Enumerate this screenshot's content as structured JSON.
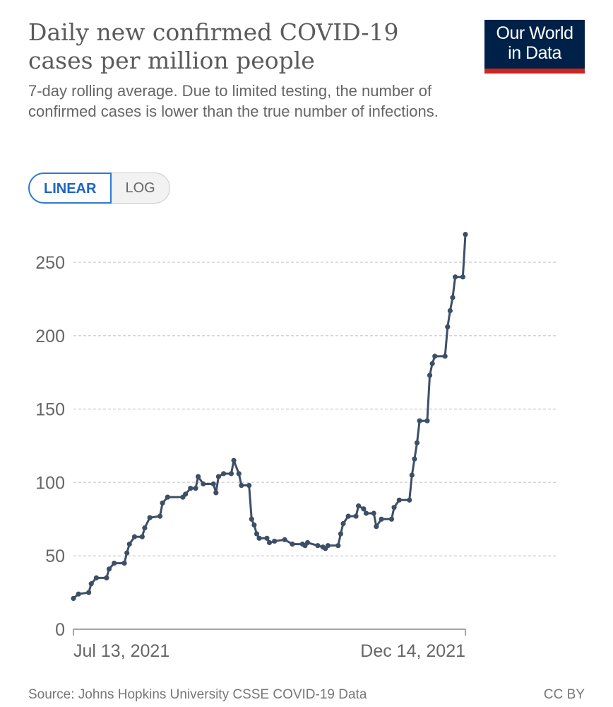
{
  "header": {
    "title": "Daily new confirmed COVID-19 cases per million people",
    "subtitle": "7-day rolling average. Due to limited testing, the number of confirmed cases is lower than the true number of infections.",
    "logo_line1": "Our World",
    "logo_line2": "in Data"
  },
  "controls": {
    "linear": "LINEAR",
    "log": "LOG"
  },
  "footer": {
    "source": "Source: Johns Hopkins University CSSE COVID-19 Data",
    "license": "CC BY"
  },
  "colors": {
    "line": "#3d4f66",
    "grid": "#d4d4d4",
    "logo_bg": "#002147",
    "logo_bar": "#ce261e"
  },
  "chart_data": {
    "type": "line",
    "title": "Daily new confirmed COVID-19 cases per million people",
    "x_unit": "days since Jul 13, 2021",
    "xlim": [
      0,
      154
    ],
    "x_tick_labels": [
      "Jul 13, 2021",
      "Dec 14, 2021"
    ],
    "ylim": [
      0,
      250
    ],
    "y_ticks": [
      0,
      50,
      100,
      150,
      200,
      250
    ],
    "grid": true,
    "series": [
      {
        "name": "Cases per million",
        "points": [
          [
            0,
            21
          ],
          [
            2,
            24
          ],
          [
            6,
            25
          ],
          [
            7,
            31
          ],
          [
            9,
            35
          ],
          [
            13,
            35
          ],
          [
            14,
            41
          ],
          [
            16,
            45
          ],
          [
            20,
            45
          ],
          [
            21,
            52
          ],
          [
            22,
            58
          ],
          [
            24,
            63
          ],
          [
            27,
            63
          ],
          [
            28,
            69
          ],
          [
            30,
            76
          ],
          [
            34,
            77
          ],
          [
            35,
            86
          ],
          [
            37,
            90
          ],
          [
            43,
            90
          ],
          [
            44,
            92
          ],
          [
            46,
            96
          ],
          [
            48,
            96
          ],
          [
            49,
            104
          ],
          [
            51,
            99
          ],
          [
            55,
            99
          ],
          [
            56,
            93
          ],
          [
            57,
            104
          ],
          [
            59,
            106
          ],
          [
            62,
            106
          ],
          [
            63,
            115
          ],
          [
            65,
            106
          ],
          [
            66,
            98
          ],
          [
            69,
            98
          ],
          [
            70,
            75
          ],
          [
            71,
            71
          ],
          [
            72,
            65
          ],
          [
            73,
            62
          ],
          [
            76,
            62
          ],
          [
            77,
            59
          ],
          [
            79,
            60
          ],
          [
            83,
            61
          ],
          [
            86,
            58
          ],
          [
            90,
            58
          ],
          [
            91,
            57
          ],
          [
            92,
            59
          ],
          [
            96,
            57
          ],
          [
            98,
            56
          ],
          [
            99,
            55
          ],
          [
            100,
            57
          ],
          [
            104,
            57
          ],
          [
            105,
            65
          ],
          [
            106,
            72
          ],
          [
            108,
            77
          ],
          [
            111,
            77
          ],
          [
            112,
            84
          ],
          [
            114,
            82
          ],
          [
            115,
            79
          ],
          [
            118,
            79
          ],
          [
            119,
            70
          ],
          [
            121,
            75
          ],
          [
            125,
            75
          ],
          [
            126,
            83
          ],
          [
            128,
            88
          ],
          [
            132,
            88
          ],
          [
            133,
            105
          ],
          [
            134,
            116
          ],
          [
            135,
            127
          ],
          [
            136,
            142
          ],
          [
            139,
            142
          ],
          [
            140,
            173
          ],
          [
            141,
            181
          ],
          [
            142,
            186
          ],
          [
            146,
            186
          ],
          [
            147,
            206
          ],
          [
            148,
            217
          ],
          [
            149,
            226
          ],
          [
            150,
            240
          ],
          [
            153,
            240
          ],
          [
            154,
            269
          ]
        ]
      }
    ]
  }
}
